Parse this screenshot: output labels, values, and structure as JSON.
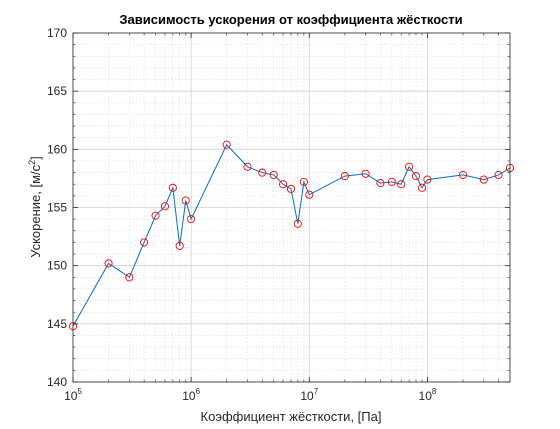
{
  "chart_data": {
    "type": "line",
    "title": "Зависимость ускорения от коэффициента жёсткости",
    "xlabel": "Коэффициент жёсткости, [Па]",
    "ylabel_main": "Ускорение, [м/с",
    "ylabel_sup": "2",
    "ylabel_end": "]",
    "xscale": "log",
    "xlim": [
      100000,
      500000000
    ],
    "ylim": [
      140,
      170
    ],
    "grid": true,
    "minor_grid": true,
    "legend": "none",
    "line_color": "#0072bd",
    "marker_color": "#ff0000",
    "marker": "circle",
    "x_ticks": [
      {
        "value": 100000,
        "base": "10",
        "exp": "5"
      },
      {
        "value": 1000000,
        "base": "10",
        "exp": "6"
      },
      {
        "value": 10000000,
        "base": "10",
        "exp": "7"
      },
      {
        "value": 100000000,
        "base": "10",
        "exp": "8"
      }
    ],
    "y_ticks": [
      {
        "value": 140,
        "label": "140"
      },
      {
        "value": 145,
        "label": "145"
      },
      {
        "value": 150,
        "label": "150"
      },
      {
        "value": 155,
        "label": "155"
      },
      {
        "value": 160,
        "label": "160"
      },
      {
        "value": 165,
        "label": "165"
      },
      {
        "value": 170,
        "label": "170"
      }
    ],
    "x": [
      100000,
      200000,
      300000,
      400000,
      500000,
      600000,
      700000,
      800000,
      900000,
      1000000,
      2000000,
      3000000,
      4000000,
      5000000,
      6000000,
      7000000,
      8000000,
      9000000,
      10000000,
      20000000,
      30000000,
      40000000,
      50000000,
      60000000,
      70000000,
      80000000,
      90000000,
      100000000,
      200000000,
      300000000,
      400000000,
      500000000
    ],
    "y": [
      144.8,
      150.2,
      149.0,
      152.0,
      154.3,
      155.1,
      156.7,
      151.7,
      155.6,
      154.0,
      160.4,
      158.5,
      158.0,
      157.8,
      157.0,
      156.6,
      153.6,
      157.2,
      156.1,
      157.7,
      157.9,
      157.1,
      157.2,
      157.0,
      158.5,
      157.7,
      156.7,
      157.4,
      157.8,
      157.4,
      157.8,
      158.4
    ]
  }
}
